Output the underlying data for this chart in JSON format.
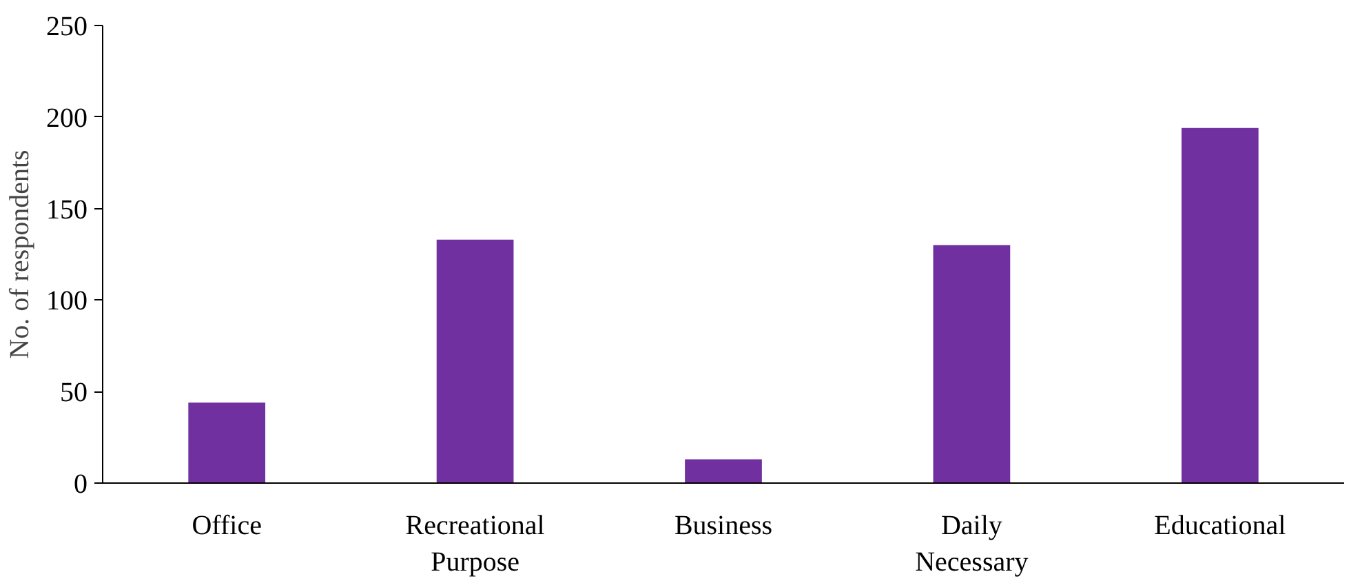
{
  "chart_data": {
    "type": "bar",
    "ylabel": "No. of respondents",
    "categories": [
      "Office",
      "Recreational\nPurpose",
      "Business",
      "Daily\nNecessary",
      "Educational"
    ],
    "values": [
      44,
      133,
      13,
      130,
      194
    ],
    "color": "#7030a0",
    "ylim": [
      0,
      250
    ],
    "yticks": [
      0,
      50,
      100,
      150,
      200,
      250
    ],
    "grid": false
  }
}
